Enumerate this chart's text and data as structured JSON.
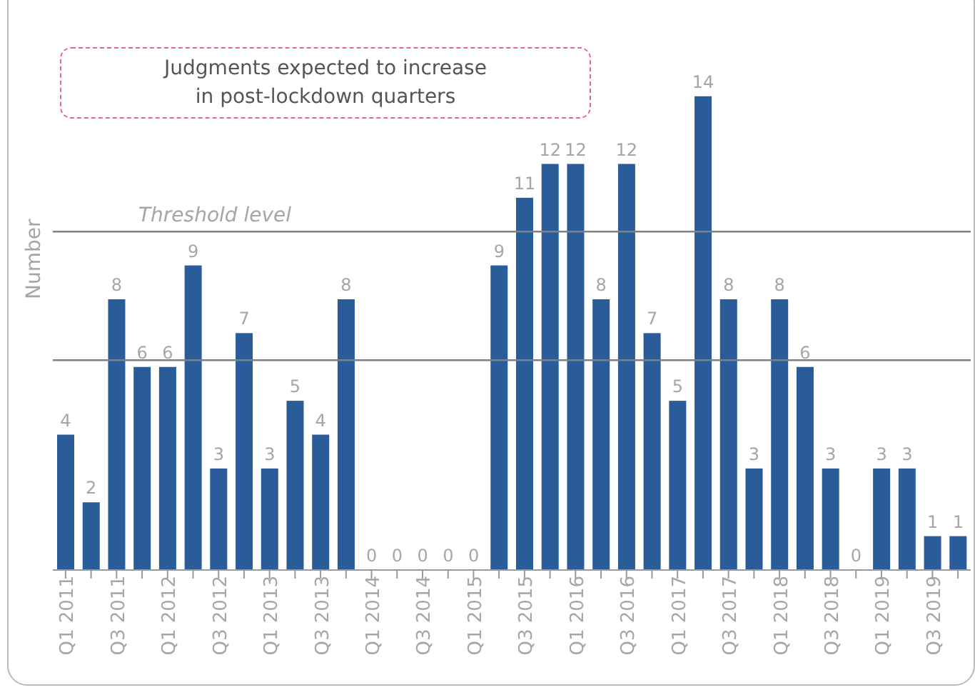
{
  "chart_data": {
    "type": "bar",
    "ylabel": "Number",
    "categories": [
      "Q1 2011",
      null,
      "Q3 2011",
      null,
      "Q1 2012",
      null,
      "Q3 2012",
      null,
      "Q1 2013",
      null,
      "Q3 2013",
      null,
      "Q1 2014",
      null,
      "Q3 2014",
      null,
      "Q1 2015",
      null,
      "Q3 2015",
      null,
      "Q1 2016",
      null,
      "Q3 2016",
      null,
      "Q1 2017",
      null,
      "Q3 2017",
      null,
      "Q1 2018",
      null,
      "Q3 2018",
      null,
      "Q1 2019",
      null,
      "Q3 2019",
      null
    ],
    "values": [
      4,
      2,
      8,
      6,
      6,
      9,
      3,
      7,
      3,
      5,
      4,
      8,
      0,
      0,
      0,
      0,
      0,
      9,
      11,
      12,
      12,
      8,
      12,
      7,
      5,
      14,
      8,
      3,
      8,
      6,
      3,
      0,
      3,
      3,
      1,
      1
    ],
    "color": "#2a5c9a",
    "tick_labels": "x",
    "data_labels": true,
    "grid": false,
    "ref_lines": [
      {
        "axis": "y",
        "value": 10,
        "label": "Threshold level",
        "color": "#808080"
      },
      {
        "axis": "y",
        "value": 6.2,
        "label": null,
        "color": "#808080"
      }
    ],
    "annotations": [
      "Judgments expected to increase\nin post-lockdown quarters"
    ]
  }
}
